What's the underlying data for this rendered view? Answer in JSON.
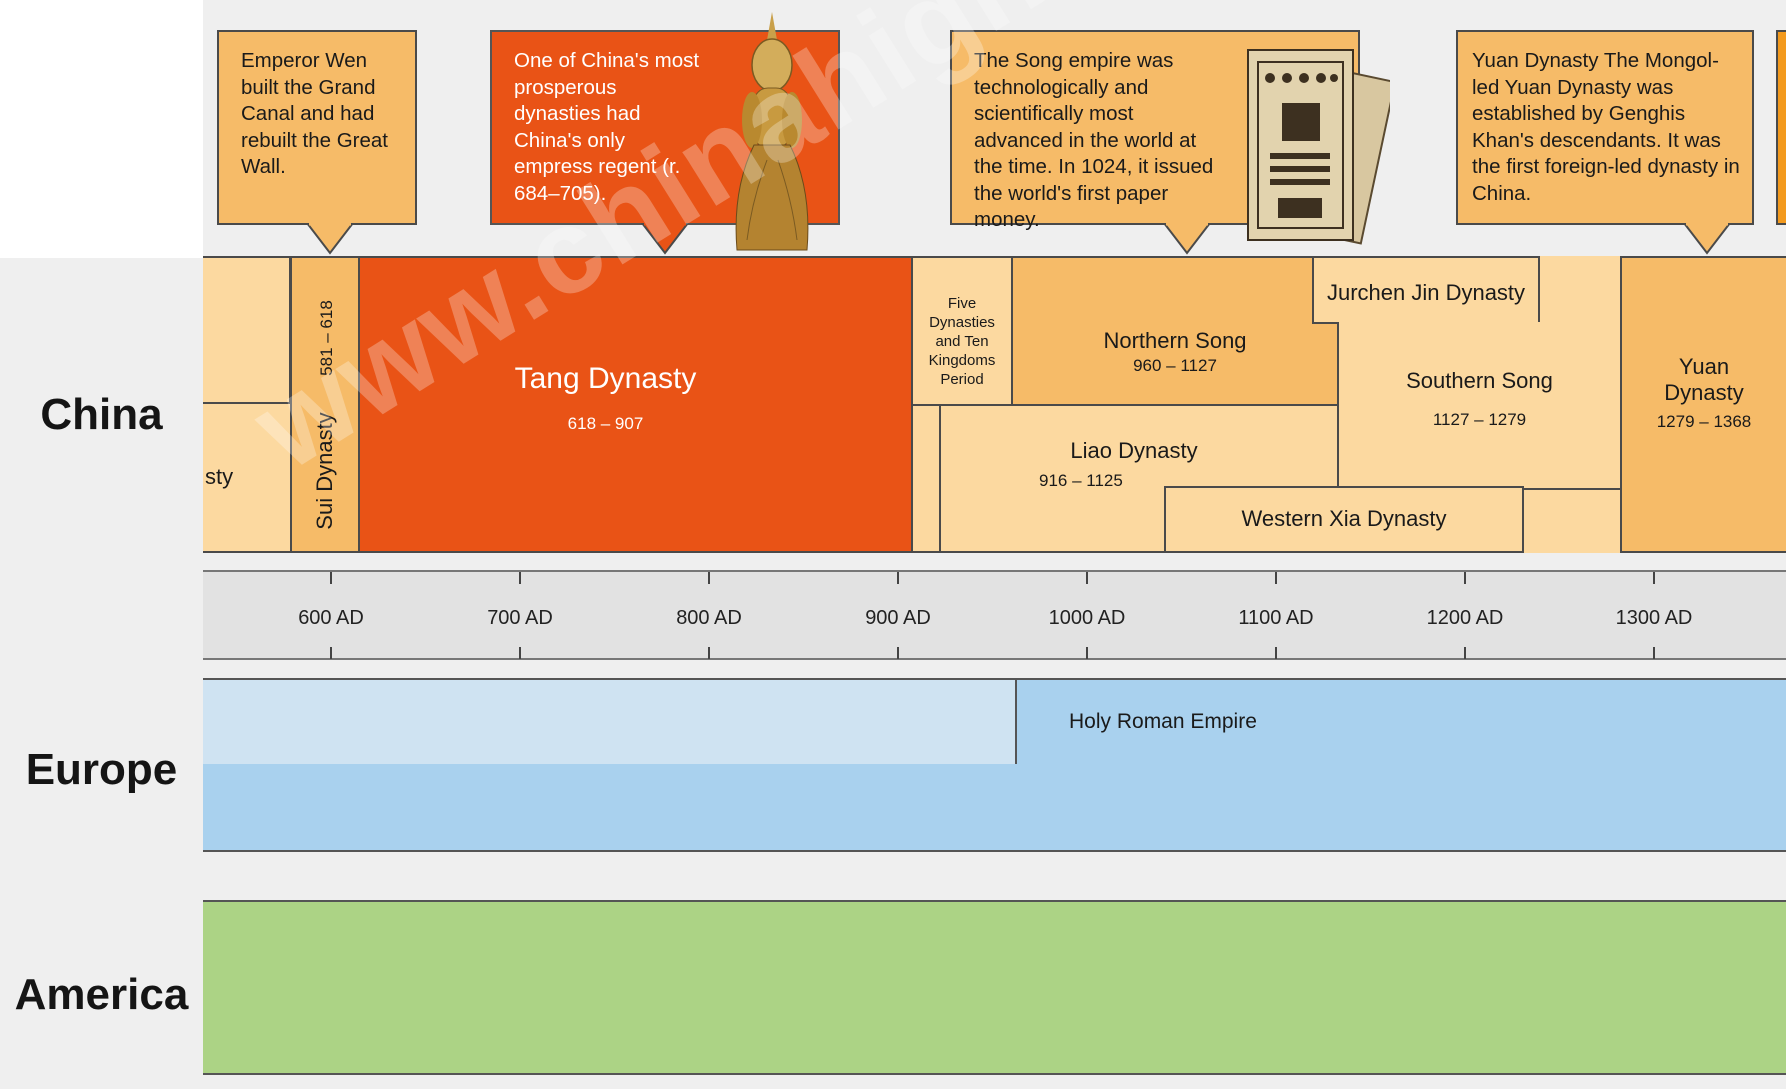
{
  "regions": {
    "china": "China",
    "europe": "Europe",
    "america": "America"
  },
  "callouts": {
    "sui": "Emperor Wen built the Grand Canal and had rebuilt the Great Wall.",
    "tang": "One of China's most prosperous dynasties had China's only empress regent (r. 684–705).",
    "song": "The Song empire was technologically and scientifically most advanced in the world at the time. In 1024, it issued the world's first paper money.",
    "yuan": "Yuan Dynasty The Mongol-led Yuan Dynasty was established by Genghis Khan's descendants. It was the first foreign-led dynasty in China."
  },
  "dynasties": {
    "partial": "sty",
    "sui_years": "581 – 618",
    "sui_name": "Sui Dynasty",
    "tang_name": "Tang Dynasty",
    "tang_years": "618 – 907",
    "five": "Five Dynasties and Ten Kingdoms Period",
    "northern_song_name": "Northern Song",
    "northern_song_years": "960 – 1127",
    "jin_name": "Jurchen Jin Dynasty",
    "liao_name": "Liao Dynasty",
    "liao_years": "916 – 1125",
    "southern_song_name": "Southern Song",
    "southern_song_years": "1127 – 1279",
    "western_xia_name": "Western Xia Dynasty",
    "yuan_name": "Yuan Dynasty",
    "yuan_years": "1279 – 1368"
  },
  "axis_ticks": [
    "600 AD",
    "700 AD",
    "800 AD",
    "900 AD",
    "1000 AD",
    "1100 AD",
    "1200 AD",
    "1300 AD"
  ],
  "europe": {
    "holy_roman": "Holy Roman Empire"
  },
  "watermark": "www.chinahighlights.com",
  "colors": {
    "tang": "#e95316",
    "light_orange": "#fcd9a0",
    "mid_orange": "#f6bb68",
    "europe_light": "#cfe3f2",
    "europe_mid": "#a9d1ee",
    "america": "#acd385"
  }
}
